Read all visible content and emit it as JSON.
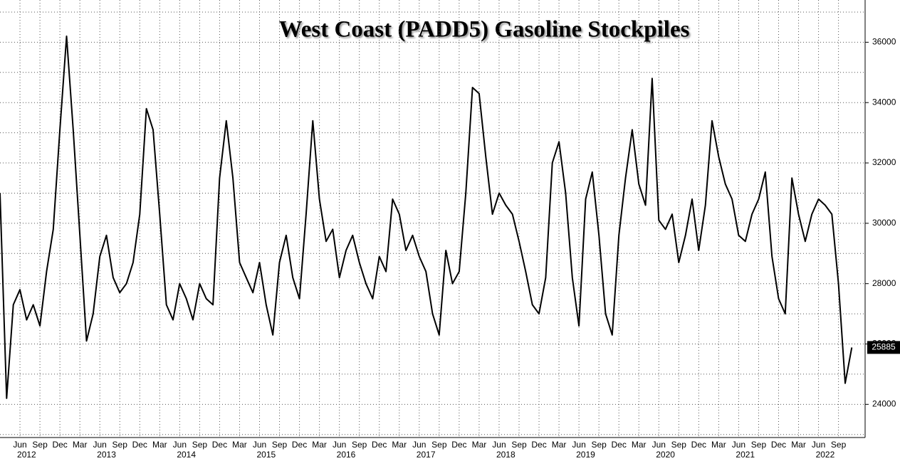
{
  "chart_data": {
    "type": "line",
    "title": "West Coast (PADD5) Gasoline Stockpiles",
    "x": [
      "2012-03",
      "2012-04",
      "2012-05",
      "2012-06",
      "2012-07",
      "2012-08",
      "2012-09",
      "2012-10",
      "2012-11",
      "2012-12",
      "2013-01",
      "2013-02",
      "2013-03",
      "2013-04",
      "2013-05",
      "2013-06",
      "2013-07",
      "2013-08",
      "2013-09",
      "2013-10",
      "2013-11",
      "2013-12",
      "2014-01",
      "2014-02",
      "2014-03",
      "2014-04",
      "2014-05",
      "2014-06",
      "2014-07",
      "2014-08",
      "2014-09",
      "2014-10",
      "2014-11",
      "2014-12",
      "2015-01",
      "2015-02",
      "2015-03",
      "2015-04",
      "2015-05",
      "2015-06",
      "2015-07",
      "2015-08",
      "2015-09",
      "2015-10",
      "2015-11",
      "2015-12",
      "2016-01",
      "2016-02",
      "2016-03",
      "2016-04",
      "2016-05",
      "2016-06",
      "2016-07",
      "2016-08",
      "2016-09",
      "2016-10",
      "2016-11",
      "2016-12",
      "2017-01",
      "2017-02",
      "2017-03",
      "2017-04",
      "2017-05",
      "2017-06",
      "2017-07",
      "2017-08",
      "2017-09",
      "2017-10",
      "2017-11",
      "2017-12",
      "2018-01",
      "2018-02",
      "2018-03",
      "2018-04",
      "2018-05",
      "2018-06",
      "2018-07",
      "2018-08",
      "2018-09",
      "2018-10",
      "2018-11",
      "2018-12",
      "2019-01",
      "2019-02",
      "2019-03",
      "2019-04",
      "2019-05",
      "2019-06",
      "2019-07",
      "2019-08",
      "2019-09",
      "2019-10",
      "2019-11",
      "2019-12",
      "2020-01",
      "2020-02",
      "2020-03",
      "2020-04",
      "2020-05",
      "2020-06",
      "2020-07",
      "2020-08",
      "2020-09",
      "2020-10",
      "2020-11",
      "2020-12",
      "2021-01",
      "2021-02",
      "2021-03",
      "2021-04",
      "2021-05",
      "2021-06",
      "2021-07",
      "2021-08",
      "2021-09",
      "2021-10",
      "2021-11",
      "2021-12",
      "2022-01",
      "2022-02",
      "2022-03",
      "2022-04",
      "2022-05",
      "2022-06",
      "2022-07",
      "2022-08",
      "2022-09",
      "2022-10",
      "2022-11"
    ],
    "series": [
      {
        "color": "#000000",
        "values": [
          31000,
          24200,
          27300,
          27800,
          26800,
          27300,
          26600,
          28400,
          29800,
          33100,
          36200,
          33100,
          29600,
          26100,
          27000,
          28900,
          29600,
          28200,
          27700,
          28000,
          28700,
          30300,
          33800,
          33100,
          30300,
          27300,
          26800,
          28000,
          27500,
          26800,
          28000,
          27500,
          27300,
          31500,
          33400,
          31500,
          28700,
          28200,
          27700,
          28700,
          27300,
          26300,
          28700,
          29600,
          28200,
          27500,
          30300,
          33400,
          30800,
          29400,
          29800,
          28200,
          29100,
          29600,
          28700,
          28000,
          27500,
          28900,
          28400,
          30800,
          30300,
          29100,
          29600,
          28900,
          28400,
          27000,
          26300,
          29100,
          28000,
          28400,
          31000,
          34500,
          34300,
          32200,
          30300,
          31000,
          30600,
          30300,
          29400,
          28400,
          27300,
          27000,
          28200,
          32000,
          32700,
          31000,
          28200,
          26600,
          30800,
          31700,
          29600,
          27000,
          26300,
          29600,
          31500,
          33100,
          31300,
          30600,
          34800,
          30100,
          29800,
          30300,
          28700,
          29600,
          30800,
          29100,
          30600,
          33400,
          32200,
          31300,
          30800,
          29600,
          29400,
          30300,
          30800,
          31700,
          28900,
          27500,
          27000,
          31500,
          30300,
          29400,
          30300,
          30800,
          30600,
          30300,
          28000,
          24700,
          25885
        ]
      }
    ],
    "xlim": [
      "2012-03",
      "2023-01"
    ],
    "xticks": [
      {
        "value": "2012-06",
        "label": "Jun"
      },
      {
        "value": "2012-09",
        "label": "Sep"
      },
      {
        "value": "2012-12",
        "label": "Dec"
      },
      {
        "value": "2013-03",
        "label": "Mar"
      },
      {
        "value": "2013-06",
        "label": "Jun"
      },
      {
        "value": "2013-09",
        "label": "Sep"
      },
      {
        "value": "2013-12",
        "label": "Dec"
      },
      {
        "value": "2014-03",
        "label": "Mar"
      },
      {
        "value": "2014-06",
        "label": "Jun"
      },
      {
        "value": "2014-09",
        "label": "Sep"
      },
      {
        "value": "2014-12",
        "label": "Dec"
      },
      {
        "value": "2015-03",
        "label": "Mar"
      },
      {
        "value": "2015-06",
        "label": "Jun"
      },
      {
        "value": "2015-09",
        "label": "Sep"
      },
      {
        "value": "2015-12",
        "label": "Dec"
      },
      {
        "value": "2016-03",
        "label": "Mar"
      },
      {
        "value": "2016-06",
        "label": "Jun"
      },
      {
        "value": "2016-09",
        "label": "Sep"
      },
      {
        "value": "2016-12",
        "label": "Dec"
      },
      {
        "value": "2017-03",
        "label": "Mar"
      },
      {
        "value": "2017-06",
        "label": "Jun"
      },
      {
        "value": "2017-09",
        "label": "Sep"
      },
      {
        "value": "2017-12",
        "label": "Dec"
      },
      {
        "value": "2018-03",
        "label": "Mar"
      },
      {
        "value": "2018-06",
        "label": "Jun"
      },
      {
        "value": "2018-09",
        "label": "Sep"
      },
      {
        "value": "2018-12",
        "label": "Dec"
      },
      {
        "value": "2019-03",
        "label": "Mar"
      },
      {
        "value": "2019-06",
        "label": "Jun"
      },
      {
        "value": "2019-09",
        "label": "Sep"
      },
      {
        "value": "2019-12",
        "label": "Dec"
      },
      {
        "value": "2020-03",
        "label": "Mar"
      },
      {
        "value": "2020-06",
        "label": "Jun"
      },
      {
        "value": "2020-09",
        "label": "Sep"
      },
      {
        "value": "2020-12",
        "label": "Dec"
      },
      {
        "value": "2021-03",
        "label": "Mar"
      },
      {
        "value": "2021-06",
        "label": "Jun"
      },
      {
        "value": "2021-09",
        "label": "Sep"
      },
      {
        "value": "2021-12",
        "label": "Dec"
      },
      {
        "value": "2022-03",
        "label": "Mar"
      },
      {
        "value": "2022-06",
        "label": "Jun"
      },
      {
        "value": "2022-09",
        "label": "Sep"
      }
    ],
    "year_labels": [
      "2012",
      "2013",
      "2014",
      "2015",
      "2016",
      "2017",
      "2018",
      "2019",
      "2020",
      "2021",
      "2022"
    ],
    "ylim": [
      22900,
      37400
    ],
    "yticks": [
      24000,
      26000,
      28000,
      30000,
      32000,
      34000,
      36000
    ],
    "y_minor_ticks": [
      23000,
      25000,
      27000,
      29000,
      31000,
      33000,
      35000,
      37000
    ],
    "grid": true
  }
}
